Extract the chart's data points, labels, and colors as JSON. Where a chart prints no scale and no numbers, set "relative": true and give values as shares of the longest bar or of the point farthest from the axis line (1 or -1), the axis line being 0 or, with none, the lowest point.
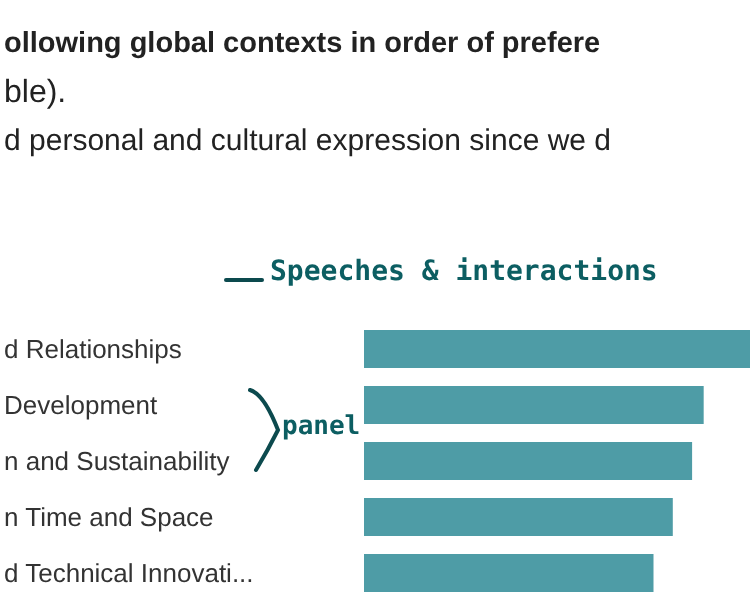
{
  "chart_data": {
    "type": "bar",
    "orientation": "horizontal",
    "relative": true,
    "title": "ollowing global contexts in order of prefere",
    "subtitle": "ble).",
    "annotations": [
      "d personal and cultural expression since we d",
      "Speeches & interactions",
      "panel"
    ],
    "categories": [
      "d Relationships",
      "Development",
      "n and Sustainability",
      "n Time and Space",
      "d Technical Innovati..."
    ],
    "values": [
      1,
      0.88,
      0.85,
      0.8,
      0.75
    ],
    "color": "#4e9ca6"
  }
}
